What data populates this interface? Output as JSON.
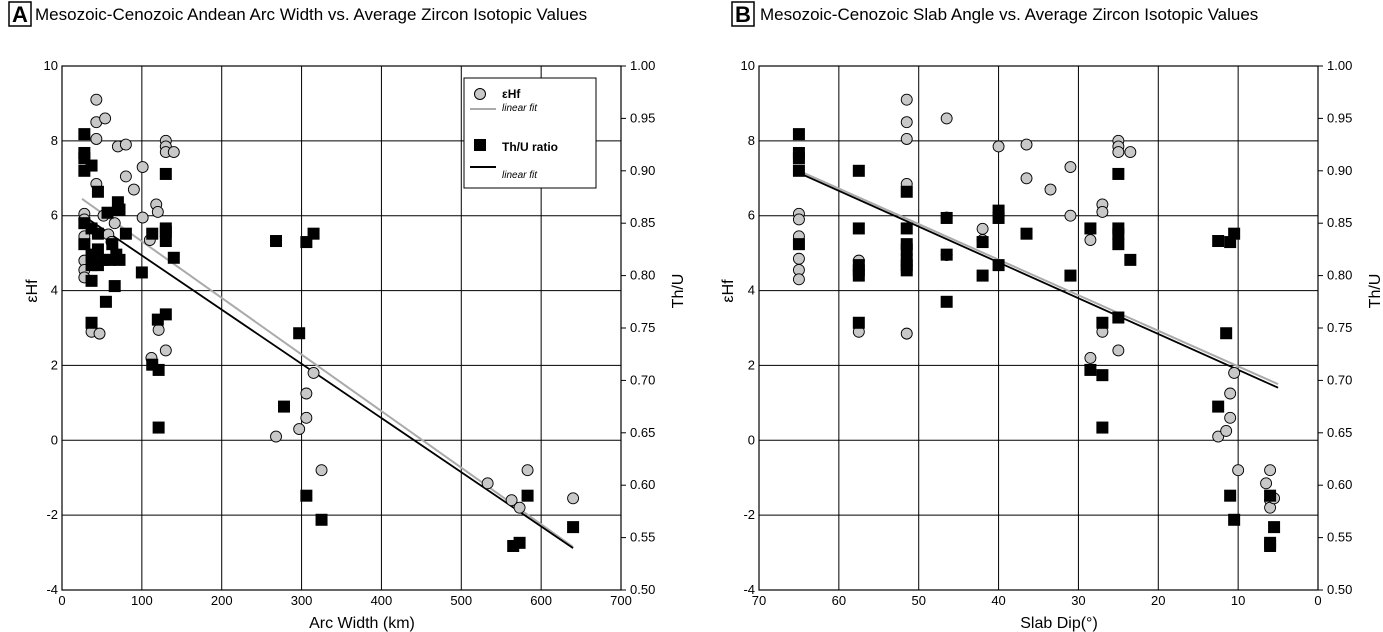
{
  "figure": {
    "panel_a": {
      "letter": "A",
      "title": "Mesozoic-Cenozoic Andean Arc Width vs. Average Zircon Isotopic Values",
      "xlabel": "Arc Width (km)",
      "ylabel_left": "εHf",
      "ylabel_right": "Th/U"
    },
    "panel_b": {
      "letter": "B",
      "title": "Mesozoic-Cenozoic Slab Angle vs. Average Zircon Isotopic Values",
      "xlabel": "Slab Dip(°)",
      "ylabel_left": "εHf",
      "ylabel_right": "Th/U"
    },
    "legend": {
      "ehf": "εHf",
      "ehf_fit": "linear fit",
      "thu": "Th/U ratio",
      "thu_fit": "linear fit"
    }
  },
  "colors": {
    "ehf_fill": "#c8c8c8",
    "ehf_fit_line": "#aaaaaa",
    "thu_fill": "#000000",
    "thu_fit_line": "#000000",
    "grid": "#000000"
  },
  "chart_data": [
    {
      "type": "scatter",
      "title": "Mesozoic-Cenozoic Andean Arc Width vs. Average Zircon Isotopic Values",
      "xlabel": "Arc Width (km)",
      "ylabel": "εHf",
      "ylabel_right": "Th/U",
      "xlim": [
        0,
        700
      ],
      "ylim": [
        -4,
        10
      ],
      "ylim_right": [
        0.5,
        1.0
      ],
      "x_ticks": [
        "0",
        "100",
        "200",
        "300",
        "400",
        "500",
        "600",
        "700"
      ],
      "y_ticks": [
        "-4",
        "-2",
        "0",
        "2",
        "4",
        "6",
        "8",
        "10"
      ],
      "y_right_ticks": [
        "0.50",
        "0.55",
        "0.60",
        "0.65",
        "0.70",
        "0.75",
        "0.80",
        "0.85",
        "0.90",
        "0.95",
        "1.00"
      ],
      "grid": true,
      "legend_position": "top-right",
      "series": [
        {
          "name": "εHf",
          "axis": "left",
          "marker": "circle",
          "points": [
            [
              28,
              6.05
            ],
            [
              28,
              5.9
            ],
            [
              28,
              5.45
            ],
            [
              28,
              4.8
            ],
            [
              28,
              4.55
            ],
            [
              28,
              4.35
            ],
            [
              37,
              3.05
            ],
            [
              37,
              2.9
            ],
            [
              43,
              9.1
            ],
            [
              43,
              8.5
            ],
            [
              43,
              8.05
            ],
            [
              43,
              6.85
            ],
            [
              47,
              2.85
            ],
            [
              54,
              8.6
            ],
            [
              52,
              6.0
            ],
            [
              58,
              5.5
            ],
            [
              62,
              5.3
            ],
            [
              66,
              5.8
            ],
            [
              70,
              7.85
            ],
            [
              80,
              7.9
            ],
            [
              80,
              7.05
            ],
            [
              90,
              6.7
            ],
            [
              101,
              7.3
            ],
            [
              101,
              5.95
            ],
            [
              110,
              5.35
            ],
            [
              112,
              2.2
            ],
            [
              118,
              6.3
            ],
            [
              120,
              6.1
            ],
            [
              121,
              2.95
            ],
            [
              130,
              8.0
            ],
            [
              130,
              7.85
            ],
            [
              130,
              7.7
            ],
            [
              130,
              2.4
            ],
            [
              140,
              7.7
            ],
            [
              268,
              0.1
            ],
            [
              297,
              0.3
            ],
            [
              306,
              1.25
            ],
            [
              306,
              0.6
            ],
            [
              315,
              1.8
            ],
            [
              325,
              -0.8
            ],
            [
              533,
              -1.15
            ],
            [
              563,
              -1.6
            ],
            [
              573,
              -1.8
            ],
            [
              583,
              -0.8
            ],
            [
              640,
              -1.55
            ]
          ]
        },
        {
          "name": "εHf linear fit",
          "axis": "left",
          "style": "line",
          "points": [
            [
              25,
              6.45
            ],
            [
              640,
              -2.85
            ]
          ]
        },
        {
          "name": "Th/U ratio",
          "axis": "right",
          "marker": "square",
          "points": [
            [
              28,
              0.935
            ],
            [
              28,
              0.917
            ],
            [
              28,
              0.912
            ],
            [
              28,
              0.9
            ],
            [
              28,
              0.85
            ],
            [
              28,
              0.83
            ],
            [
              37,
              0.905
            ],
            [
              37,
              0.845
            ],
            [
              37,
              0.82
            ],
            [
              37,
              0.81
            ],
            [
              37,
              0.795
            ],
            [
              37,
              0.755
            ],
            [
              45,
              0.88
            ],
            [
              45,
              0.84
            ],
            [
              45,
              0.825
            ],
            [
              45,
              0.81
            ],
            [
              52,
              0.815
            ],
            [
              55,
              0.775
            ],
            [
              57,
              0.86
            ],
            [
              60,
              0.815
            ],
            [
              63,
              0.83
            ],
            [
              66,
              0.79
            ],
            [
              68,
              0.82
            ],
            [
              70,
              0.87
            ],
            [
              72,
              0.863
            ],
            [
              72,
              0.815
            ],
            [
              80,
              0.84
            ],
            [
              100,
              0.803
            ],
            [
              113,
              0.84
            ],
            [
              113,
              0.715
            ],
            [
              120,
              0.758
            ],
            [
              121,
              0.71
            ],
            [
              121,
              0.655
            ],
            [
              130,
              0.897
            ],
            [
              130,
              0.845
            ],
            [
              130,
              0.842
            ],
            [
              130,
              0.833
            ],
            [
              130,
              0.763
            ],
            [
              140,
              0.817
            ],
            [
              268,
              0.833
            ],
            [
              278,
              0.675
            ],
            [
              297,
              0.745
            ],
            [
              306,
              0.832
            ],
            [
              306,
              0.59
            ],
            [
              315,
              0.84
            ],
            [
              325,
              0.567
            ],
            [
              565,
              0.542
            ],
            [
              573,
              0.545
            ],
            [
              583,
              0.59
            ],
            [
              640,
              0.56
            ]
          ]
        },
        {
          "name": "Th/U linear fit",
          "axis": "right",
          "style": "line",
          "points": [
            [
              25,
              0.858
            ],
            [
              640,
              0.54
            ]
          ]
        }
      ]
    },
    {
      "type": "scatter",
      "title": "Mesozoic-Cenozoic Slab Angle vs. Average Zircon Isotopic Values",
      "xlabel": "Slab Dip(°)",
      "ylabel": "εHf",
      "ylabel_right": "Th/U",
      "xlim": [
        70,
        0
      ],
      "ylim": [
        -4,
        10
      ],
      "ylim_right": [
        0.5,
        1.0
      ],
      "x_ticks": [
        "70",
        "60",
        "50",
        "40",
        "30",
        "20",
        "10",
        "0"
      ],
      "y_ticks": [
        "-4",
        "-2",
        "0",
        "2",
        "4",
        "6",
        "8",
        "10"
      ],
      "y_right_ticks": [
        "0.50",
        "0.55",
        "0.60",
        "0.65",
        "0.70",
        "0.75",
        "0.80",
        "0.85",
        "0.90",
        "0.95",
        "1.00"
      ],
      "grid": true,
      "series": [
        {
          "name": "εHf",
          "axis": "left",
          "marker": "circle",
          "points": [
            [
              65,
              6.05
            ],
            [
              65,
              5.9
            ],
            [
              65,
              5.45
            ],
            [
              65,
              4.85
            ],
            [
              65,
              4.55
            ],
            [
              65,
              4.3
            ],
            [
              57.5,
              4.8
            ],
            [
              57.5,
              2.9
            ],
            [
              51.5,
              9.1
            ],
            [
              51.5,
              8.5
            ],
            [
              51.5,
              8.05
            ],
            [
              51.5,
              6.85
            ],
            [
              51.5,
              2.85
            ],
            [
              46.5,
              8.6
            ],
            [
              46.5,
              5.95
            ],
            [
              46.5,
              4.95
            ],
            [
              42,
              5.65
            ],
            [
              42,
              5.35
            ],
            [
              40,
              7.85
            ],
            [
              40,
              6.05
            ],
            [
              36.5,
              7.9
            ],
            [
              36.5,
              7.0
            ],
            [
              33.5,
              6.7
            ],
            [
              31,
              7.3
            ],
            [
              31,
              6.0
            ],
            [
              28.5,
              5.35
            ],
            [
              28.5,
              2.2
            ],
            [
              27,
              6.3
            ],
            [
              27,
              6.1
            ],
            [
              27,
              2.9
            ],
            [
              25,
              8.0
            ],
            [
              25,
              7.85
            ],
            [
              25,
              7.7
            ],
            [
              25,
              2.4
            ],
            [
              23.5,
              7.7
            ],
            [
              12.5,
              0.1
            ],
            [
              11.5,
              0.25
            ],
            [
              11,
              1.25
            ],
            [
              11,
              0.6
            ],
            [
              10.5,
              1.8
            ],
            [
              10,
              -0.8
            ],
            [
              6.5,
              -1.15
            ],
            [
              6,
              -1.6
            ],
            [
              6,
              -1.8
            ],
            [
              6,
              -0.8
            ],
            [
              5.5,
              -1.55
            ]
          ]
        },
        {
          "name": "εHf linear fit",
          "axis": "left",
          "style": "line",
          "points": [
            [
              65,
              7.2
            ],
            [
              5,
              1.5
            ]
          ]
        },
        {
          "name": "Th/U ratio",
          "axis": "right",
          "marker": "square",
          "points": [
            [
              65,
              0.935
            ],
            [
              65,
              0.917
            ],
            [
              65,
              0.912
            ],
            [
              65,
              0.9
            ],
            [
              65,
              0.83
            ],
            [
              57.5,
              0.9
            ],
            [
              57.5,
              0.845
            ],
            [
              57.5,
              0.81
            ],
            [
              57.5,
              0.805
            ],
            [
              57.5,
              0.8
            ],
            [
              57.5,
              0.755
            ],
            [
              51.5,
              0.88
            ],
            [
              51.5,
              0.845
            ],
            [
              51.5,
              0.83
            ],
            [
              51.5,
              0.825
            ],
            [
              51.5,
              0.815
            ],
            [
              51.5,
              0.81
            ],
            [
              51.5,
              0.805
            ],
            [
              46.5,
              0.855
            ],
            [
              46.5,
              0.82
            ],
            [
              46.5,
              0.775
            ],
            [
              42,
              0.832
            ],
            [
              42,
              0.8
            ],
            [
              40,
              0.862
            ],
            [
              40,
              0.855
            ],
            [
              40,
              0.81
            ],
            [
              36.5,
              0.84
            ],
            [
              31,
              0.8
            ],
            [
              28.5,
              0.845
            ],
            [
              28.5,
              0.71
            ],
            [
              27,
              0.755
            ],
            [
              27,
              0.705
            ],
            [
              27,
              0.655
            ],
            [
              25,
              0.897
            ],
            [
              25,
              0.845
            ],
            [
              25,
              0.84
            ],
            [
              25,
              0.83
            ],
            [
              25,
              0.76
            ],
            [
              23.5,
              0.815
            ],
            [
              12.5,
              0.833
            ],
            [
              12.5,
              0.675
            ],
            [
              11.5,
              0.745
            ],
            [
              11,
              0.832
            ],
            [
              11,
              0.59
            ],
            [
              10.5,
              0.84
            ],
            [
              10.5,
              0.567
            ],
            [
              6,
              0.542
            ],
            [
              6,
              0.545
            ],
            [
              6,
              0.59
            ],
            [
              5.5,
              0.56
            ]
          ]
        },
        {
          "name": "Th/U linear fit",
          "axis": "right",
          "style": "line",
          "points": [
            [
              65,
              0.898
            ],
            [
              5,
              0.693
            ]
          ]
        }
      ]
    }
  ]
}
